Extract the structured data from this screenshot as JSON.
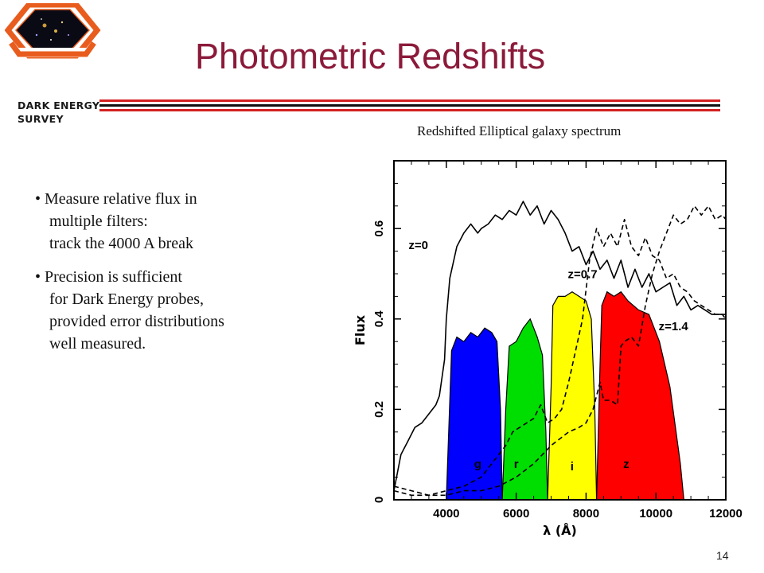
{
  "logo": {
    "line1": "DARK ENERGY",
    "line2": "SURVEY"
  },
  "slide": {
    "title": "Photometric Redshifts",
    "page_number": "14"
  },
  "bullets": [
    {
      "lines": [
        "• Measure relative flux in",
        "multiple filters:",
        "track the 4000 A break"
      ]
    },
    {
      "lines": [
        "• Precision is sufficient",
        "for Dark Energy probes,",
        "provided error distributions",
        "well measured."
      ]
    }
  ],
  "figure_caption": "Redshifted Elliptical galaxy spectrum",
  "chart_data": {
    "type": "line",
    "xlabel": "λ (Å)",
    "ylabel": "Flux",
    "xlim": [
      2500,
      12000
    ],
    "ylim": [
      0,
      0.75
    ],
    "xticks": [
      "4000",
      "6000",
      "8000",
      "10000",
      "12000"
    ],
    "yticks": [
      "0",
      "0.2",
      "0.4",
      "0.6"
    ],
    "colors": {
      "g": "#0000ff",
      "r": "#00dd00",
      "i": "#ffff00",
      "z": "#ff0000"
    },
    "filters": [
      {
        "name": "g",
        "x": [
          4000,
          4080,
          4150,
          4300,
          4500,
          4700,
          4900,
          5100,
          5300,
          5450,
          5550,
          5600
        ],
        "y": [
          0,
          0.18,
          0.33,
          0.36,
          0.35,
          0.37,
          0.36,
          0.38,
          0.37,
          0.35,
          0.2,
          0
        ]
      },
      {
        "name": "r",
        "x": [
          5600,
          5700,
          5800,
          6000,
          6200,
          6400,
          6600,
          6750,
          6850,
          6900
        ],
        "y": [
          0,
          0.2,
          0.34,
          0.35,
          0.38,
          0.4,
          0.36,
          0.32,
          0.15,
          0
        ]
      },
      {
        "name": "i",
        "x": [
          6900,
          7000,
          7050,
          7200,
          7400,
          7600,
          7800,
          8000,
          8150,
          8250,
          8300
        ],
        "y": [
          0,
          0.25,
          0.43,
          0.45,
          0.45,
          0.46,
          0.45,
          0.44,
          0.4,
          0.2,
          0
        ]
      },
      {
        "name": "z",
        "x": [
          8300,
          8400,
          8450,
          8600,
          8800,
          9000,
          9200,
          9500,
          9800,
          10100,
          10400,
          10700,
          10800
        ],
        "y": [
          0,
          0.3,
          0.43,
          0.46,
          0.45,
          0.46,
          0.44,
          0.42,
          0.41,
          0.35,
          0.25,
          0.08,
          0
        ]
      }
    ],
    "series": [
      {
        "name": "z=0",
        "style": "solid",
        "x": [
          2500,
          2700,
          2900,
          3100,
          3300,
          3500,
          3700,
          3800,
          3950,
          4000,
          4100,
          4300,
          4500,
          4700,
          4900,
          5000,
          5200,
          5400,
          5600,
          5800,
          6000,
          6200,
          6400,
          6600,
          6800,
          7000,
          7200,
          7400,
          7600,
          7800,
          8000,
          8200,
          8400,
          8600,
          8800,
          9000,
          9200,
          9400,
          9600,
          9800,
          10000,
          10200,
          10400,
          10600,
          10800,
          11000,
          11200,
          11400,
          11600,
          11800,
          12000
        ],
        "y": [
          0.02,
          0.1,
          0.13,
          0.16,
          0.17,
          0.19,
          0.21,
          0.23,
          0.31,
          0.4,
          0.49,
          0.56,
          0.59,
          0.61,
          0.59,
          0.6,
          0.61,
          0.63,
          0.62,
          0.64,
          0.63,
          0.66,
          0.63,
          0.65,
          0.61,
          0.64,
          0.62,
          0.59,
          0.55,
          0.56,
          0.52,
          0.55,
          0.51,
          0.53,
          0.49,
          0.53,
          0.47,
          0.51,
          0.47,
          0.5,
          0.46,
          0.47,
          0.48,
          0.43,
          0.45,
          0.42,
          0.43,
          0.42,
          0.41,
          0.41,
          0.41
        ]
      },
      {
        "name": "z=0.7",
        "style": "dashed",
        "x": [
          2500,
          3000,
          3500,
          4000,
          4500,
          5000,
          5300,
          5500,
          5700,
          5900,
          6100,
          6300,
          6500,
          6700,
          6900,
          7100,
          7300,
          7500,
          7700,
          7900,
          8100,
          8300,
          8500,
          8700,
          8900,
          9100,
          9300,
          9500,
          9700,
          9900,
          10100,
          10300,
          10500,
          10700,
          10900,
          11100,
          11300,
          11500,
          11700,
          11900,
          12000
        ],
        "y": [
          0.02,
          0.01,
          0.01,
          0.02,
          0.03,
          0.05,
          0.08,
          0.1,
          0.12,
          0.15,
          0.16,
          0.17,
          0.18,
          0.21,
          0.17,
          0.18,
          0.2,
          0.26,
          0.33,
          0.4,
          0.53,
          0.6,
          0.56,
          0.59,
          0.56,
          0.62,
          0.56,
          0.54,
          0.58,
          0.54,
          0.53,
          0.49,
          0.5,
          0.47,
          0.46,
          0.44,
          0.43,
          0.42,
          0.41,
          0.41,
          0.4
        ]
      },
      {
        "name": "z=1.4",
        "style": "dashed",
        "x": [
          2500,
          3000,
          3500,
          4000,
          4500,
          5000,
          5500,
          6000,
          6500,
          7000,
          7500,
          7800,
          8000,
          8200,
          8400,
          8500,
          8700,
          8900,
          9000,
          9100,
          9300,
          9500,
          9700,
          9900,
          10100,
          10300,
          10500,
          10700,
          10900,
          11100,
          11300,
          11500,
          11700,
          11900,
          12000
        ],
        "y": [
          0.03,
          0.02,
          0.01,
          0.01,
          0.02,
          0.02,
          0.03,
          0.05,
          0.08,
          0.12,
          0.15,
          0.16,
          0.17,
          0.2,
          0.26,
          0.22,
          0.22,
          0.21,
          0.34,
          0.35,
          0.36,
          0.34,
          0.43,
          0.5,
          0.55,
          0.59,
          0.63,
          0.61,
          0.62,
          0.65,
          0.63,
          0.65,
          0.62,
          0.63,
          0.62
        ]
      }
    ],
    "labels": [
      {
        "text": "z=0",
        "x": 3200,
        "y": 0.555
      },
      {
        "text": "z=0.7",
        "x": 7900,
        "y": 0.49
      },
      {
        "text": "z=1.4",
        "x": 10500,
        "y": 0.375
      },
      {
        "text": "g",
        "x": 4900,
        "y": 0.07
      },
      {
        "text": "r",
        "x": 6000,
        "y": 0.07
      },
      {
        "text": "i",
        "x": 7600,
        "y": 0.065
      },
      {
        "text": "z",
        "x": 9150,
        "y": 0.07
      }
    ]
  }
}
